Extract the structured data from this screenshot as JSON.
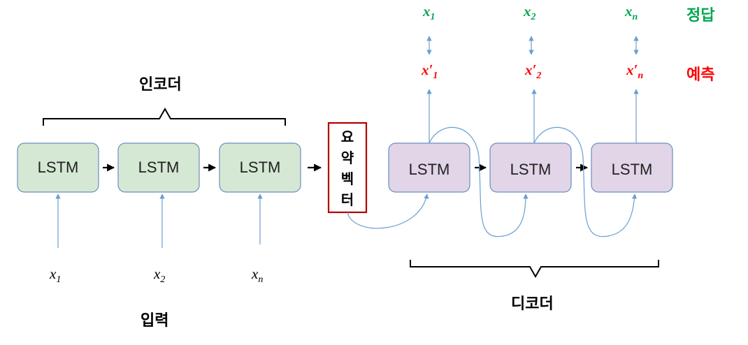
{
  "encoder": {
    "label": "인코더",
    "cells": [
      "LSTM",
      "LSTM",
      "LSTM"
    ]
  },
  "inputs": {
    "label": "입력",
    "items": [
      {
        "base": "x",
        "sub": "1"
      },
      {
        "base": "x",
        "sub": "2"
      },
      {
        "base": "x",
        "sub": "n"
      }
    ]
  },
  "summary_vector": {
    "chars": [
      "요",
      "약",
      "벡",
      "터"
    ]
  },
  "decoder": {
    "label": "디코더",
    "cells": [
      "LSTM",
      "LSTM",
      "LSTM"
    ]
  },
  "answers": {
    "label": "정답",
    "items": [
      {
        "base": "x",
        "sub": "1"
      },
      {
        "base": "x",
        "sub": "2"
      },
      {
        "base": "x",
        "sub": "n"
      }
    ]
  },
  "predictions": {
    "label": "예측",
    "items": [
      {
        "base": "x",
        "prime": "′",
        "sub": "1"
      },
      {
        "base": "x",
        "prime": "′",
        "sub": "2"
      },
      {
        "base": "x",
        "prime": "′",
        "sub": "n"
      }
    ]
  },
  "colors": {
    "encoder_fill": "#d5e8d4",
    "encoder_stroke": "#6c8ebf",
    "decoder_fill": "#e1d5e7",
    "decoder_stroke": "#6c8ebf",
    "summary_border": "#b20000",
    "connector": "#6a9ed0",
    "answer_text": "#00a650",
    "prediction_text": "#ff0000"
  }
}
